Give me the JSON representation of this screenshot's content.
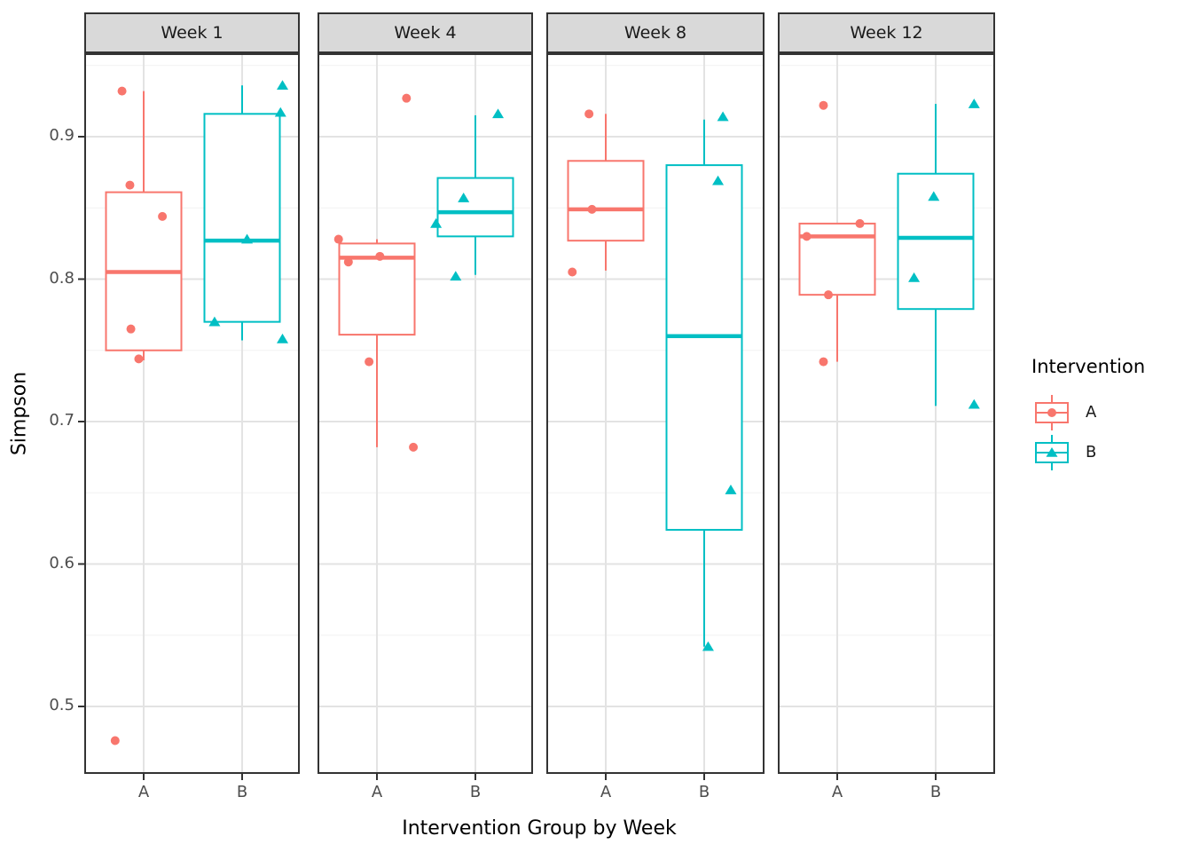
{
  "y_axis": {
    "label": "Simpson",
    "tick_labels": [
      "0.9",
      "0.8",
      "0.7",
      "0.6",
      "0.5"
    ]
  },
  "x_axis": {
    "label": "Intervention Group by Week",
    "categories": [
      "A",
      "B"
    ]
  },
  "legend": {
    "title": "Intervention",
    "items": [
      {
        "label": "A",
        "color": "#F8766D",
        "marker": "circle"
      },
      {
        "label": "B",
        "color": "#00BFC4",
        "marker": "triangle"
      }
    ]
  },
  "chart_data": {
    "type": "grouped_boxplot_with_jitter",
    "title": "",
    "xlabel": "Intervention Group by Week",
    "ylabel": "Simpson",
    "ylim": [
      0.453,
      0.959
    ],
    "y_major": [
      0.9,
      0.8,
      0.7,
      0.6,
      0.5
    ],
    "y_minor": [
      0.95,
      0.85,
      0.75,
      0.65,
      0.55
    ],
    "grid": true,
    "legend_position": "right",
    "facets": [
      {
        "label": "Week 1",
        "groups": [
          {
            "group": "A",
            "stats": {
              "whisker_low": 0.743,
              "q1": 0.75,
              "median": 0.805,
              "q3": 0.861,
              "whisker_high": 0.932
            },
            "points": [
              {
                "v": 0.932,
                "j": -0.22
              },
              {
                "v": 0.866,
                "j": -0.14
              },
              {
                "v": 0.844,
                "j": 0.19
              },
              {
                "v": 0.765,
                "j": -0.13
              },
              {
                "v": 0.744,
                "j": -0.05
              },
              {
                "v": 0.476,
                "j": -0.29
              }
            ]
          },
          {
            "group": "B",
            "stats": {
              "whisker_low": 0.757,
              "q1": 0.77,
              "median": 0.827,
              "q3": 0.916,
              "whisker_high": 0.936
            },
            "points": [
              {
                "v": 0.936,
                "j": 0.41
              },
              {
                "v": 0.917,
                "j": 0.39
              },
              {
                "v": 0.828,
                "j": 0.05
              },
              {
                "v": 0.77,
                "j": -0.28
              },
              {
                "v": 0.758,
                "j": 0.41
              }
            ]
          }
        ]
      },
      {
        "label": "Week 4",
        "groups": [
          {
            "group": "A",
            "stats": {
              "whisker_low": 0.682,
              "q1": 0.761,
              "median": 0.815,
              "q3": 0.825,
              "whisker_high": 0.828
            },
            "points": [
              {
                "v": 0.927,
                "j": 0.3
              },
              {
                "v": 0.828,
                "j": -0.39
              },
              {
                "v": 0.816,
                "j": 0.03
              },
              {
                "v": 0.812,
                "j": -0.29
              },
              {
                "v": 0.742,
                "j": -0.08
              },
              {
                "v": 0.682,
                "j": 0.37
              }
            ]
          },
          {
            "group": "B",
            "stats": {
              "whisker_low": 0.803,
              "q1": 0.83,
              "median": 0.847,
              "q3": 0.871,
              "whisker_high": 0.915
            },
            "points": [
              {
                "v": 0.916,
                "j": 0.23
              },
              {
                "v": 0.857,
                "j": -0.12
              },
              {
                "v": 0.839,
                "j": -0.4
              },
              {
                "v": 0.802,
                "j": -0.2
              }
            ]
          }
        ]
      },
      {
        "label": "Week 8",
        "groups": [
          {
            "group": "A",
            "stats": {
              "whisker_low": 0.806,
              "q1": 0.827,
              "median": 0.849,
              "q3": 0.883,
              "whisker_high": 0.916
            },
            "points": [
              {
                "v": 0.916,
                "j": -0.17
              },
              {
                "v": 0.849,
                "j": -0.14
              },
              {
                "v": 0.805,
                "j": -0.34
              }
            ]
          },
          {
            "group": "B",
            "stats": {
              "whisker_low": 0.542,
              "q1": 0.624,
              "median": 0.76,
              "q3": 0.88,
              "whisker_high": 0.912
            },
            "points": [
              {
                "v": 0.914,
                "j": 0.19
              },
              {
                "v": 0.869,
                "j": 0.14
              },
              {
                "v": 0.652,
                "j": 0.27
              },
              {
                "v": 0.542,
                "j": 0.04
              }
            ]
          }
        ]
      },
      {
        "label": "Week 12",
        "groups": [
          {
            "group": "A",
            "stats": {
              "whisker_low": 0.742,
              "q1": 0.789,
              "median": 0.83,
              "q3": 0.839,
              "whisker_high": 0.839
            },
            "points": [
              {
                "v": 0.922,
                "j": -0.14
              },
              {
                "v": 0.839,
                "j": 0.23
              },
              {
                "v": 0.83,
                "j": -0.31
              },
              {
                "v": 0.789,
                "j": -0.09
              },
              {
                "v": 0.742,
                "j": -0.14
              }
            ]
          },
          {
            "group": "B",
            "stats": {
              "whisker_low": 0.711,
              "q1": 0.779,
              "median": 0.829,
              "q3": 0.874,
              "whisker_high": 0.923
            },
            "points": [
              {
                "v": 0.923,
                "j": 0.39
              },
              {
                "v": 0.858,
                "j": -0.02
              },
              {
                "v": 0.801,
                "j": -0.22
              },
              {
                "v": 0.712,
                "j": 0.39
              }
            ]
          }
        ]
      }
    ]
  }
}
